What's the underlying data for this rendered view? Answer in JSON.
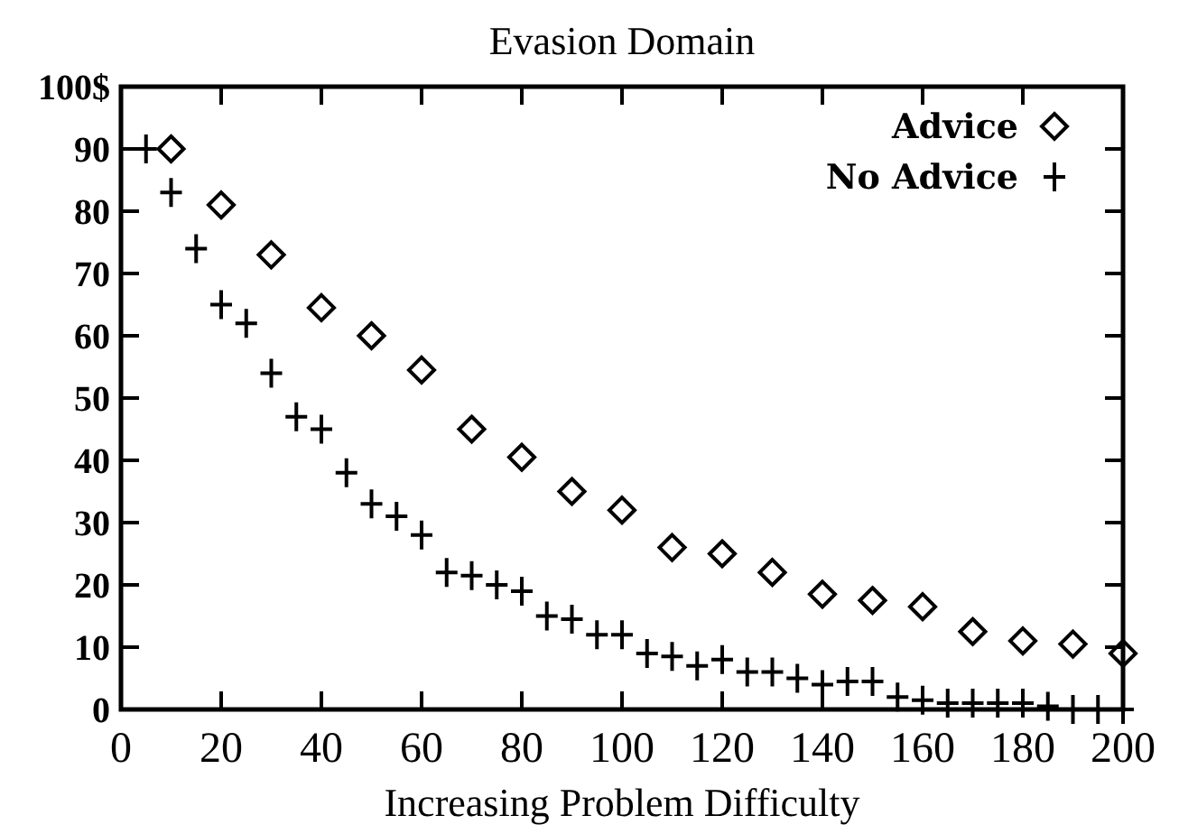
{
  "chart_data": {
    "type": "scatter",
    "title": "Evasion Domain",
    "xlabel": "Increasing Problem Difficulty",
    "xlim": [
      0,
      200
    ],
    "ylim": [
      0,
      100
    ],
    "xticks": [
      0,
      20,
      40,
      60,
      80,
      100,
      120,
      140,
      160,
      180,
      200
    ],
    "yticks": [
      0,
      10,
      20,
      30,
      40,
      50,
      60,
      70,
      80,
      90,
      {
        "value": 100,
        "label": "100$"
      }
    ],
    "grid": false,
    "legend": "top right",
    "series": [
      {
        "name": "Advice",
        "color": "#000000",
        "marker": "diamond",
        "x": [
          10,
          20,
          30,
          40,
          50,
          60,
          70,
          80,
          90,
          100,
          110,
          120,
          130,
          140,
          150,
          160,
          170,
          180,
          190,
          200
        ],
        "values": [
          90,
          81,
          73,
          64.5,
          60,
          54.5,
          45,
          40.5,
          35,
          32,
          26,
          25,
          22,
          18.5,
          17.5,
          16.5,
          12.5,
          11,
          10.5,
          9
        ]
      },
      {
        "name": "No Advice",
        "color": "#000000",
        "marker": "cross",
        "x": [
          5,
          10,
          15,
          20,
          25,
          30,
          35,
          40,
          45,
          50,
          55,
          60,
          65,
          70,
          75,
          80,
          85,
          90,
          95,
          100,
          105,
          110,
          115,
          120,
          125,
          130,
          135,
          140,
          145,
          150,
          155,
          160,
          165,
          170,
          175,
          180,
          185,
          190,
          195,
          200
        ],
        "values": [
          90,
          83,
          74,
          65,
          62,
          54,
          47,
          45,
          38,
          33,
          31,
          28,
          22,
          21.5,
          20,
          19,
          15,
          14.5,
          12,
          12,
          9,
          8.5,
          7,
          8,
          6,
          6,
          5,
          4,
          4.5,
          4.5,
          2,
          1.5,
          1,
          1,
          1,
          1,
          0.5,
          0,
          0,
          0
        ]
      }
    ]
  }
}
